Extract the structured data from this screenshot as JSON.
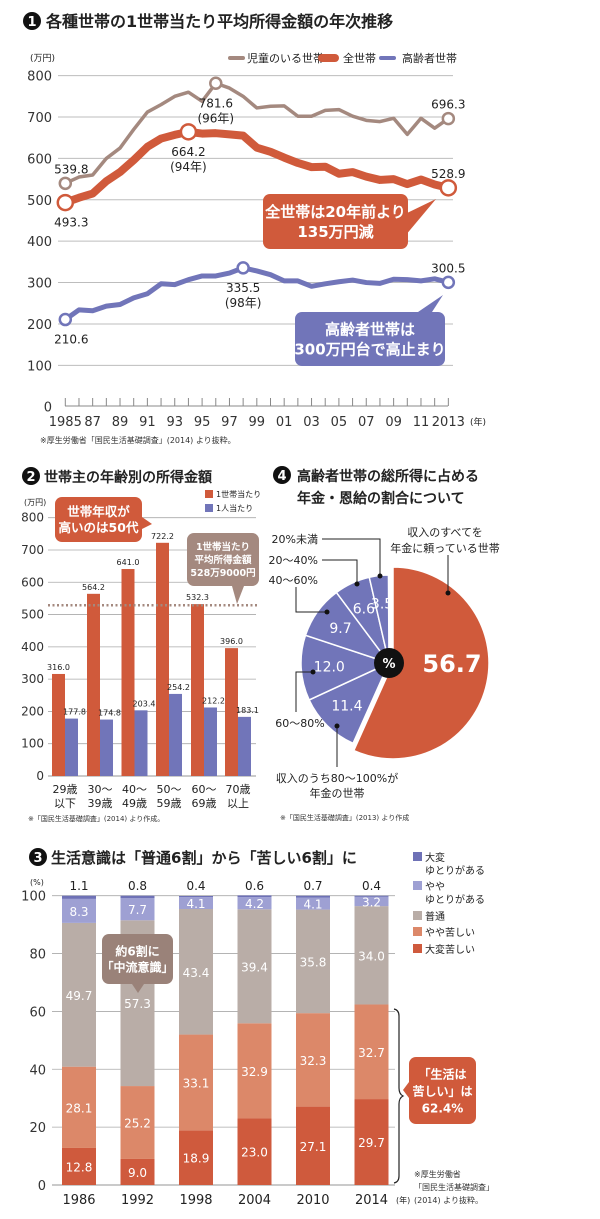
{
  "chart_data": [
    {
      "type": "line",
      "number": "1",
      "title": "各種世帯の1世帯当たり平均所得金額の年次推移",
      "unit_label": "(万円)",
      "x_unit": "(年)",
      "x": [
        1985,
        1986,
        1987,
        1988,
        1989,
        1990,
        1991,
        1992,
        1993,
        1994,
        1995,
        1996,
        1997,
        1998,
        1999,
        2000,
        2001,
        2002,
        2003,
        2004,
        2005,
        2006,
        2007,
        2008,
        2009,
        2010,
        2011,
        2012,
        2013
      ],
      "x_tick_labels": [
        {
          "year": 1985,
          "label": "1985"
        },
        {
          "year": 1987,
          "label": "87"
        },
        {
          "year": 1989,
          "label": "89"
        },
        {
          "year": 1991,
          "label": "91"
        },
        {
          "year": 1993,
          "label": "93"
        },
        {
          "year": 1995,
          "label": "95"
        },
        {
          "year": 1997,
          "label": "97"
        },
        {
          "year": 1999,
          "label": "99"
        },
        {
          "year": 2001,
          "label": "01"
        },
        {
          "year": 2003,
          "label": "03"
        },
        {
          "year": 2005,
          "label": "05"
        },
        {
          "year": 2007,
          "label": "07"
        },
        {
          "year": 2009,
          "label": "09"
        },
        {
          "year": 2011,
          "label": "11"
        },
        {
          "year": 2013,
          "label": "2013"
        }
      ],
      "ylim": [
        0,
        800
      ],
      "y_ticks": [
        "0",
        "100",
        "200",
        "300",
        "400",
        "500",
        "600",
        "700",
        "800"
      ],
      "grid": true,
      "legend_position": "top-right",
      "series": [
        {
          "name": "児童のいる世帯",
          "color": "#a4897f",
          "values": [
            539.8,
            555,
            560,
            600,
            625,
            670,
            712,
            730,
            750,
            760,
            738,
            781.6,
            770,
            750,
            722,
            726,
            727,
            702,
            702,
            716,
            718,
            702,
            692,
            689,
            697,
            658,
            697,
            673,
            696.3
          ]
        },
        {
          "name": "全世帯",
          "color": "#d05a3b",
          "values": [
            493.3,
            505,
            515,
            545,
            567,
            596,
            628,
            648,
            657,
            664.2,
            660,
            661,
            658,
            655,
            626,
            616,
            602,
            589,
            579,
            580,
            563,
            567,
            556,
            548,
            550,
            538,
            549,
            537,
            528.9
          ]
        },
        {
          "name": "高齢者世帯",
          "color": "#7175b9",
          "values": [
            210.6,
            234,
            232,
            243,
            247,
            263,
            273,
            297,
            295,
            307,
            316,
            316,
            323,
            335.5,
            328,
            319,
            304,
            304,
            291,
            297,
            302,
            306,
            300,
            298,
            308,
            307,
            304,
            309,
            300.5
          ]
        }
      ],
      "annotations": [
        {
          "series": 0,
          "year": 1985,
          "text": "539.8",
          "sub": "",
          "place": "above"
        },
        {
          "series": 0,
          "year": 1996,
          "text": "781.6",
          "sub": "(96年)",
          "place": "below"
        },
        {
          "series": 0,
          "year": 2013,
          "text": "696.3",
          "sub": "",
          "place": "above"
        },
        {
          "series": 1,
          "year": 1985,
          "text": "493.3",
          "sub": "",
          "place": "below"
        },
        {
          "series": 1,
          "year": 1994,
          "text": "664.2",
          "sub": "(94年)",
          "place": "below"
        },
        {
          "series": 1,
          "year": 2013,
          "text": "528.9",
          "sub": "",
          "place": "above"
        },
        {
          "series": 2,
          "year": 1985,
          "text": "210.6",
          "sub": "",
          "place": "below"
        },
        {
          "series": 2,
          "year": 1998,
          "text": "335.5",
          "sub": "(98年)",
          "place": "below"
        },
        {
          "series": 2,
          "year": 2013,
          "text": "300.5",
          "sub": "",
          "place": "above"
        }
      ],
      "callouts": [
        {
          "lines": [
            "全世帯は20年前より",
            "135万円減"
          ],
          "color": "#d05a3b"
        },
        {
          "lines": [
            "高齢者世帯は",
            "300万円台で高止まり"
          ],
          "color": "#7175b9"
        }
      ],
      "source": "※厚生労働省「国民生活基礎調査」(2014) より抜粋。"
    },
    {
      "type": "bar",
      "number": "2",
      "title": "世帯主の年齢別の所得金額",
      "unit_label": "(万円)",
      "ylim": [
        0,
        800
      ],
      "y_ticks": [
        "0",
        "100",
        "200",
        "300",
        "400",
        "500",
        "600",
        "700",
        "800"
      ],
      "grid": true,
      "legend_position": "top-right",
      "categories": [
        [
          "29歳",
          "以下"
        ],
        [
          "30〜",
          "39歳"
        ],
        [
          "40〜",
          "49歳"
        ],
        [
          "50〜",
          "59歳"
        ],
        [
          "60〜",
          "69歳"
        ],
        [
          "70歳",
          "以上"
        ]
      ],
      "series": [
        {
          "name": "1世帯当たり",
          "color": "#d05a3b",
          "values": [
            316.0,
            564.2,
            641.0,
            722.2,
            532.3,
            396.0
          ],
          "labels": [
            "316.0",
            "564.2",
            "641.0",
            "722.2",
            "532.3",
            "396.0"
          ]
        },
        {
          "name": "1人当たり",
          "color": "#7175b9",
          "values": [
            177.8,
            174.8,
            203.4,
            254.2,
            212.2,
            183.1
          ],
          "labels": [
            "177.8",
            "174.8",
            "203.4",
            "254.2",
            "212.2",
            "183.1"
          ]
        }
      ],
      "reference_line": {
        "value": 528.9,
        "color": "#a4897f"
      },
      "callouts": [
        {
          "lines": [
            "世帯年収が",
            "高いのは50代"
          ],
          "color": "#d05a3b"
        },
        {
          "lines": [
            "1世帯当たり",
            "平均所得金額",
            "528万9000円"
          ],
          "color": "#a4897f"
        }
      ],
      "source": "※「国民生活基礎調査」(2014) より作成。"
    },
    {
      "type": "pie",
      "number": "4",
      "title_lines": [
        "高齢者世帯の総所得に占める",
        "年金・恩給の割合について"
      ],
      "center_label": "%",
      "slices": [
        {
          "value": 56.7,
          "label": "56.7",
          "category": [
            "収入のすべてを",
            "年金に頼っている世帯"
          ],
          "color": "#d05a3b"
        },
        {
          "value": 11.4,
          "label": "11.4",
          "category": [
            "収入のうち80〜100%が",
            "年金の世帯"
          ],
          "color": "#7175b9"
        },
        {
          "value": 12.0,
          "label": "12.0",
          "category": [
            "60〜80%"
          ],
          "color": "#7175b9"
        },
        {
          "value": 9.7,
          "label": "9.7",
          "category": [
            "40〜60%"
          ],
          "color": "#7175b9"
        },
        {
          "value": 6.6,
          "label": "6.6",
          "category": [
            "20〜40%"
          ],
          "color": "#7175b9"
        },
        {
          "value": 3.5,
          "label": "3.5",
          "category": [
            "20%未満"
          ],
          "color": "#7175b9"
        }
      ],
      "source": "※「国民生活基礎調査」(2013) より作成"
    },
    {
      "type": "bar",
      "stacked": true,
      "number": "3",
      "title": "生活意識は「普通6割」から「苦しい6割」に",
      "unit_label": "(%)",
      "x_unit": "(年)",
      "ylim": [
        0,
        100
      ],
      "y_ticks": [
        "0",
        "20",
        "40",
        "60",
        "80",
        "100"
      ],
      "grid": true,
      "legend_position": "right",
      "categories": [
        "1986",
        "1992",
        "1998",
        "2004",
        "2010",
        "2014"
      ],
      "series": [
        {
          "name": [
            "大変苦しい"
          ],
          "color": "#cf5a3d",
          "values": [
            12.8,
            9.0,
            18.9,
            23.0,
            27.1,
            29.7
          ],
          "labels": [
            "12.8",
            "9.0",
            "18.9",
            "23.0",
            "27.1",
            "29.7"
          ]
        },
        {
          "name": [
            "やや苦しい"
          ],
          "color": "#dc8869",
          "values": [
            28.1,
            25.2,
            33.1,
            32.9,
            32.3,
            32.7
          ],
          "labels": [
            "28.1",
            "25.2",
            "33.1",
            "32.9",
            "32.3",
            "32.7"
          ]
        },
        {
          "name": [
            "普通"
          ],
          "color": "#b9ada7",
          "values": [
            49.7,
            57.3,
            43.4,
            39.4,
            35.8,
            34.0
          ],
          "labels": [
            "49.7",
            "57.3",
            "43.4",
            "39.4",
            "35.8",
            "34.0"
          ]
        },
        {
          "name": [
            "やや",
            "ゆとりがある"
          ],
          "color": "#9ea0d3",
          "values": [
            8.3,
            7.7,
            4.1,
            4.2,
            4.1,
            3.2
          ],
          "labels": [
            "8.3",
            "7.7",
            "4.1",
            "4.2",
            "4.1",
            "3.2"
          ]
        },
        {
          "name": [
            "大変",
            "ゆとりがある"
          ],
          "color": "#6e71b6",
          "values": [
            1.1,
            0.8,
            0.4,
            0.6,
            0.7,
            0.4
          ],
          "labels": [
            "1.1",
            "0.8",
            "0.4",
            "0.6",
            "0.7",
            "0.4"
          ]
        }
      ],
      "callouts": [
        {
          "lines": [
            "約6割に",
            "「中流意識」"
          ],
          "color": "#9a8279"
        },
        {
          "lines": [
            "「生活は",
            "苦しい」は",
            "62.4%"
          ],
          "color": "#d05a3b"
        }
      ],
      "source_lines": [
        "※厚生労働省",
        "「国民生活基礎調査」",
        "(2014) より抜粋。"
      ]
    }
  ]
}
